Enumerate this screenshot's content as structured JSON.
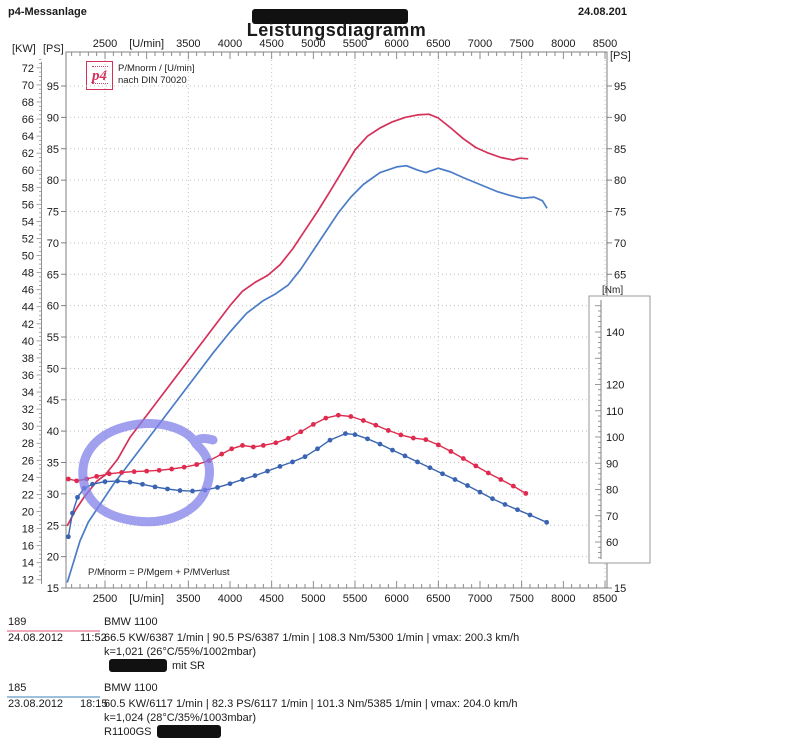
{
  "header": {
    "app_name": "p4-Messanlage",
    "center_redacted": true,
    "date": "24.08.201"
  },
  "title": "Leistungsdiagramm",
  "legend": {
    "logo_text": "p4",
    "line1": "P/Mnorm / [U/min]",
    "line2": "nach DIN 70020"
  },
  "note": "P/Mnorm = P/Mgem + P/MVerlust",
  "axis_units": {
    "left_kw": "[KW]",
    "left_ps": "[PS]",
    "right_ps": "[PS]",
    "right_nm": "[Nm]"
  },
  "chart_data": {
    "type": "line",
    "title": "Leistungsdiagramm",
    "x_axis": {
      "unit": "[U/min]",
      "min": 2030,
      "max": 8500,
      "tick_values": [
        2500,
        3000,
        3500,
        4000,
        4500,
        5000,
        5500,
        6000,
        6500,
        7000,
        7500,
        8000,
        8500
      ],
      "tick_labels": [
        "2500",
        "[U/min]",
        "3500",
        "4000",
        "4500",
        "5000",
        "5500",
        "6000",
        "6500",
        "7000",
        "7500",
        "8000",
        "8500"
      ],
      "minor_tick_step": 100,
      "grid_values": [
        2500,
        3500,
        4500,
        5500,
        6500,
        7500,
        8500
      ]
    },
    "y_left_kw": {
      "unit": "[KW]",
      "min": 12,
      "max": 72,
      "label_step": 2
    },
    "y_left_ps": {
      "unit": "[PS]",
      "min": 15,
      "max": 95,
      "label_step": 5,
      "grid_step": 5
    },
    "y_right_ps": {
      "unit": "[PS]",
      "min": 15,
      "max": 95,
      "label_step": 5
    },
    "y_right_nm": {
      "unit": "[Nm]",
      "tick_labels": [
        140,
        120,
        110,
        100,
        90,
        80,
        70,
        60
      ],
      "major_step": 10,
      "minor_step": 2,
      "range": [
        54,
        150
      ]
    },
    "grid": true,
    "series": [
      {
        "name": "power_run_189",
        "unit": "PS",
        "color": "#d5305a",
        "markers": false,
        "points": [
          [
            2050,
            25
          ],
          [
            2150,
            27.5
          ],
          [
            2250,
            29.5
          ],
          [
            2400,
            32
          ],
          [
            2500,
            33
          ],
          [
            2650,
            35.5
          ],
          [
            2800,
            39
          ],
          [
            3000,
            42.5
          ],
          [
            3200,
            46
          ],
          [
            3400,
            49.5
          ],
          [
            3600,
            53
          ],
          [
            3800,
            56.5
          ],
          [
            4000,
            60
          ],
          [
            4150,
            62.3
          ],
          [
            4300,
            63.7
          ],
          [
            4450,
            64.8
          ],
          [
            4600,
            66.5
          ],
          [
            4750,
            69
          ],
          [
            4900,
            72
          ],
          [
            5050,
            75
          ],
          [
            5200,
            78.2
          ],
          [
            5350,
            81.5
          ],
          [
            5500,
            84.8
          ],
          [
            5650,
            87
          ],
          [
            5800,
            88.3
          ],
          [
            5950,
            89.3
          ],
          [
            6100,
            90
          ],
          [
            6250,
            90.4
          ],
          [
            6387,
            90.5
          ],
          [
            6500,
            89.9
          ],
          [
            6650,
            88.3
          ],
          [
            6800,
            86.6
          ],
          [
            6950,
            85.2
          ],
          [
            7100,
            84.3
          ],
          [
            7250,
            83.6
          ],
          [
            7400,
            83.2
          ],
          [
            7480,
            83.5
          ],
          [
            7570,
            83.4
          ]
        ]
      },
      {
        "name": "power_run_185",
        "unit": "PS",
        "color": "#4a7cc7",
        "markers": false,
        "points": [
          [
            2050,
            16
          ],
          [
            2120,
            19
          ],
          [
            2200,
            22.5
          ],
          [
            2300,
            25.5
          ],
          [
            2450,
            28.5
          ],
          [
            2600,
            31.5
          ],
          [
            2800,
            35
          ],
          [
            3000,
            38.5
          ],
          [
            3200,
            42
          ],
          [
            3400,
            45.5
          ],
          [
            3600,
            49
          ],
          [
            3800,
            52.5
          ],
          [
            4000,
            55.8
          ],
          [
            4200,
            58.8
          ],
          [
            4400,
            60.8
          ],
          [
            4550,
            61.9
          ],
          [
            4700,
            63.3
          ],
          [
            4850,
            65.8
          ],
          [
            5000,
            68.8
          ],
          [
            5150,
            71.8
          ],
          [
            5300,
            74.8
          ],
          [
            5450,
            77.3
          ],
          [
            5600,
            79.3
          ],
          [
            5800,
            81.2
          ],
          [
            6000,
            82.1
          ],
          [
            6117,
            82.3
          ],
          [
            6250,
            81.6
          ],
          [
            6350,
            81.2
          ],
          [
            6500,
            81.9
          ],
          [
            6650,
            81.3
          ],
          [
            6800,
            80.4
          ],
          [
            7000,
            79.3
          ],
          [
            7200,
            78.2
          ],
          [
            7350,
            77.6
          ],
          [
            7500,
            77.1
          ],
          [
            7650,
            77.3
          ],
          [
            7750,
            76.7
          ],
          [
            7800,
            75.6
          ]
        ]
      },
      {
        "name": "torque_run_189",
        "unit": "Nm",
        "color": "#de2b4e",
        "markers": true,
        "points": [
          [
            2060,
            84
          ],
          [
            2160,
            83.3
          ],
          [
            2280,
            84
          ],
          [
            2400,
            85
          ],
          [
            2550,
            86
          ],
          [
            2700,
            86.5
          ],
          [
            2850,
            86.8
          ],
          [
            3000,
            87
          ],
          [
            3150,
            87.3
          ],
          [
            3300,
            87.8
          ],
          [
            3450,
            88.5
          ],
          [
            3600,
            89.5
          ],
          [
            3750,
            91
          ],
          [
            3900,
            93.5
          ],
          [
            4020,
            95.5
          ],
          [
            4150,
            96.8
          ],
          [
            4280,
            96.2
          ],
          [
            4400,
            96.8
          ],
          [
            4550,
            97.8
          ],
          [
            4700,
            99.5
          ],
          [
            4850,
            102
          ],
          [
            5000,
            104.8
          ],
          [
            5150,
            107.2
          ],
          [
            5300,
            108.3
          ],
          [
            5450,
            107.8
          ],
          [
            5600,
            106.3
          ],
          [
            5750,
            104.5
          ],
          [
            5900,
            102.5
          ],
          [
            6050,
            100.8
          ],
          [
            6200,
            99.6
          ],
          [
            6350,
            99
          ],
          [
            6500,
            97
          ],
          [
            6650,
            94.5
          ],
          [
            6800,
            91.8
          ],
          [
            6950,
            89
          ],
          [
            7100,
            86.3
          ],
          [
            7250,
            83.8
          ],
          [
            7400,
            81.3
          ],
          [
            7550,
            78.5
          ]
        ]
      },
      {
        "name": "torque_run_185",
        "unit": "Nm",
        "color": "#3a64b2",
        "markers": true,
        "points": [
          [
            2060,
            62
          ],
          [
            2110,
            71
          ],
          [
            2170,
            77
          ],
          [
            2250,
            80.5
          ],
          [
            2350,
            82
          ],
          [
            2500,
            83
          ],
          [
            2650,
            83.2
          ],
          [
            2800,
            82.8
          ],
          [
            2950,
            82
          ],
          [
            3100,
            81
          ],
          [
            3250,
            80.2
          ],
          [
            3400,
            79.6
          ],
          [
            3550,
            79.4
          ],
          [
            3700,
            79.8
          ],
          [
            3850,
            80.8
          ],
          [
            4000,
            82.2
          ],
          [
            4150,
            83.8
          ],
          [
            4300,
            85.3
          ],
          [
            4450,
            87
          ],
          [
            4600,
            88.8
          ],
          [
            4750,
            90.5
          ],
          [
            4900,
            92.5
          ],
          [
            5050,
            95.5
          ],
          [
            5200,
            98.8
          ],
          [
            5385,
            101.3
          ],
          [
            5500,
            100.9
          ],
          [
            5650,
            99.3
          ],
          [
            5800,
            97.3
          ],
          [
            5950,
            95
          ],
          [
            6100,
            92.8
          ],
          [
            6250,
            90.5
          ],
          [
            6400,
            88.3
          ],
          [
            6550,
            86
          ],
          [
            6700,
            83.8
          ],
          [
            6850,
            81.5
          ],
          [
            7000,
            79
          ],
          [
            7150,
            76.5
          ],
          [
            7300,
            74.3
          ],
          [
            7450,
            72.3
          ],
          [
            7600,
            70.3
          ],
          [
            7800,
            67.5
          ]
        ]
      }
    ],
    "annotation": {
      "shape": "hand_drawn_circle",
      "color": "#8080e8",
      "opacity": 0.75,
      "stroke_width": 9,
      "rpm_range": [
        2250,
        3750
      ],
      "nm_range": [
        72,
        103
      ],
      "meaning": "circled low-rpm torque region"
    }
  },
  "footer": {
    "runs": [
      {
        "id": "189",
        "underline_color": "#f2a9bb",
        "model": "BMW 1100",
        "date": "24.08.2012",
        "time": "11:52",
        "result": "66.5 KW/6387 1/min  |  90.5 PS/6387 1/min  |  108.3 Nm/5300 1/min | vmax: 200.3 km/h",
        "correction": "k=1,021 (26°C/55%/1002mbar)",
        "extra_prefix": "",
        "extra_redacted": true,
        "extra_suffix": "mit SR"
      },
      {
        "id": "185",
        "underline_color": "#9cc0dc",
        "model": "BMW 1100",
        "date": "23.08.2012",
        "time": "18:15",
        "result": "60.5 KW/6117 1/min  |  82.3 PS/6117 1/min  |  101.3 Nm/5385 1/min | vmax: 204.0 km/h",
        "correction": "k=1,024 (28°C/35%/1003mbar)",
        "extra_prefix": "R1100GS",
        "extra_redacted": true,
        "extra_suffix": ""
      }
    ]
  }
}
